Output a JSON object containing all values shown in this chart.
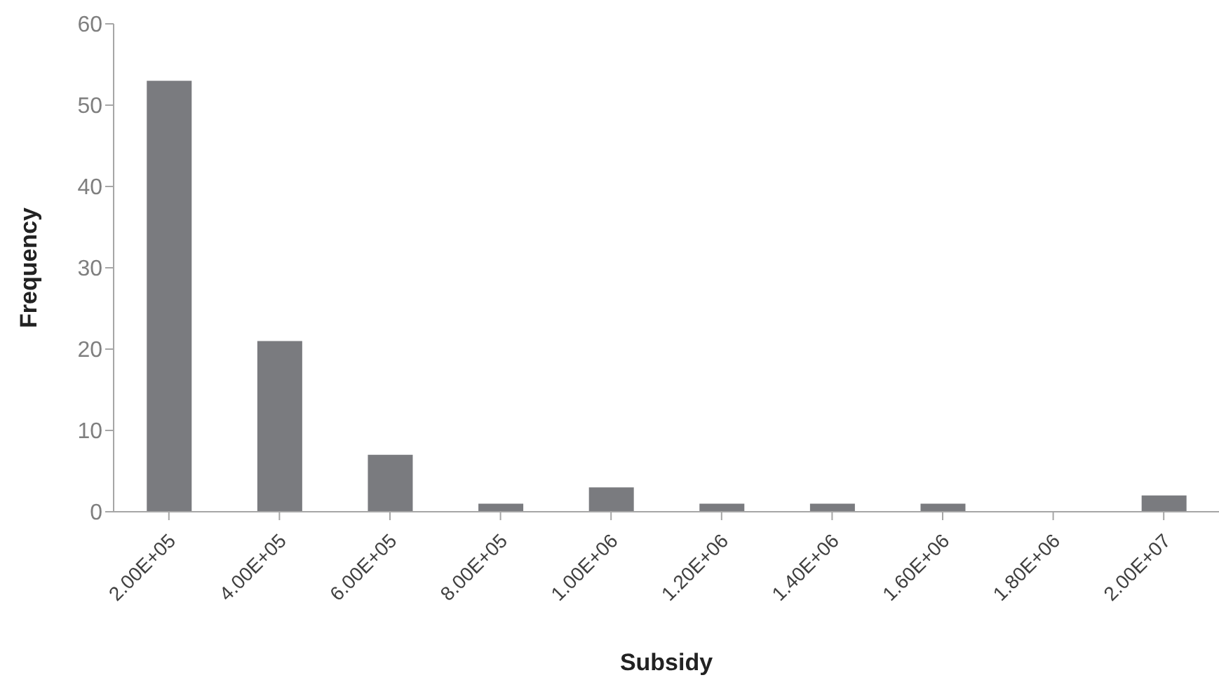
{
  "chart_data": {
    "type": "bar",
    "xlabel": "Subsidy",
    "ylabel": "Frequency",
    "categories": [
      "2.00E+05",
      "4.00E+05",
      "6.00E+05",
      "8.00E+05",
      "1.00E+06",
      "1.20E+06",
      "1.40E+06",
      "1.60E+06",
      "1.80E+06",
      "2.00E+07"
    ],
    "values": [
      53,
      21,
      7,
      1,
      3,
      1,
      1,
      1,
      0,
      2
    ],
    "color": "#7a7b7f",
    "ylim": [
      0,
      60
    ],
    "yticks": [
      0,
      10,
      20,
      30,
      40,
      50,
      60
    ],
    "grid": false,
    "legend": false
  }
}
